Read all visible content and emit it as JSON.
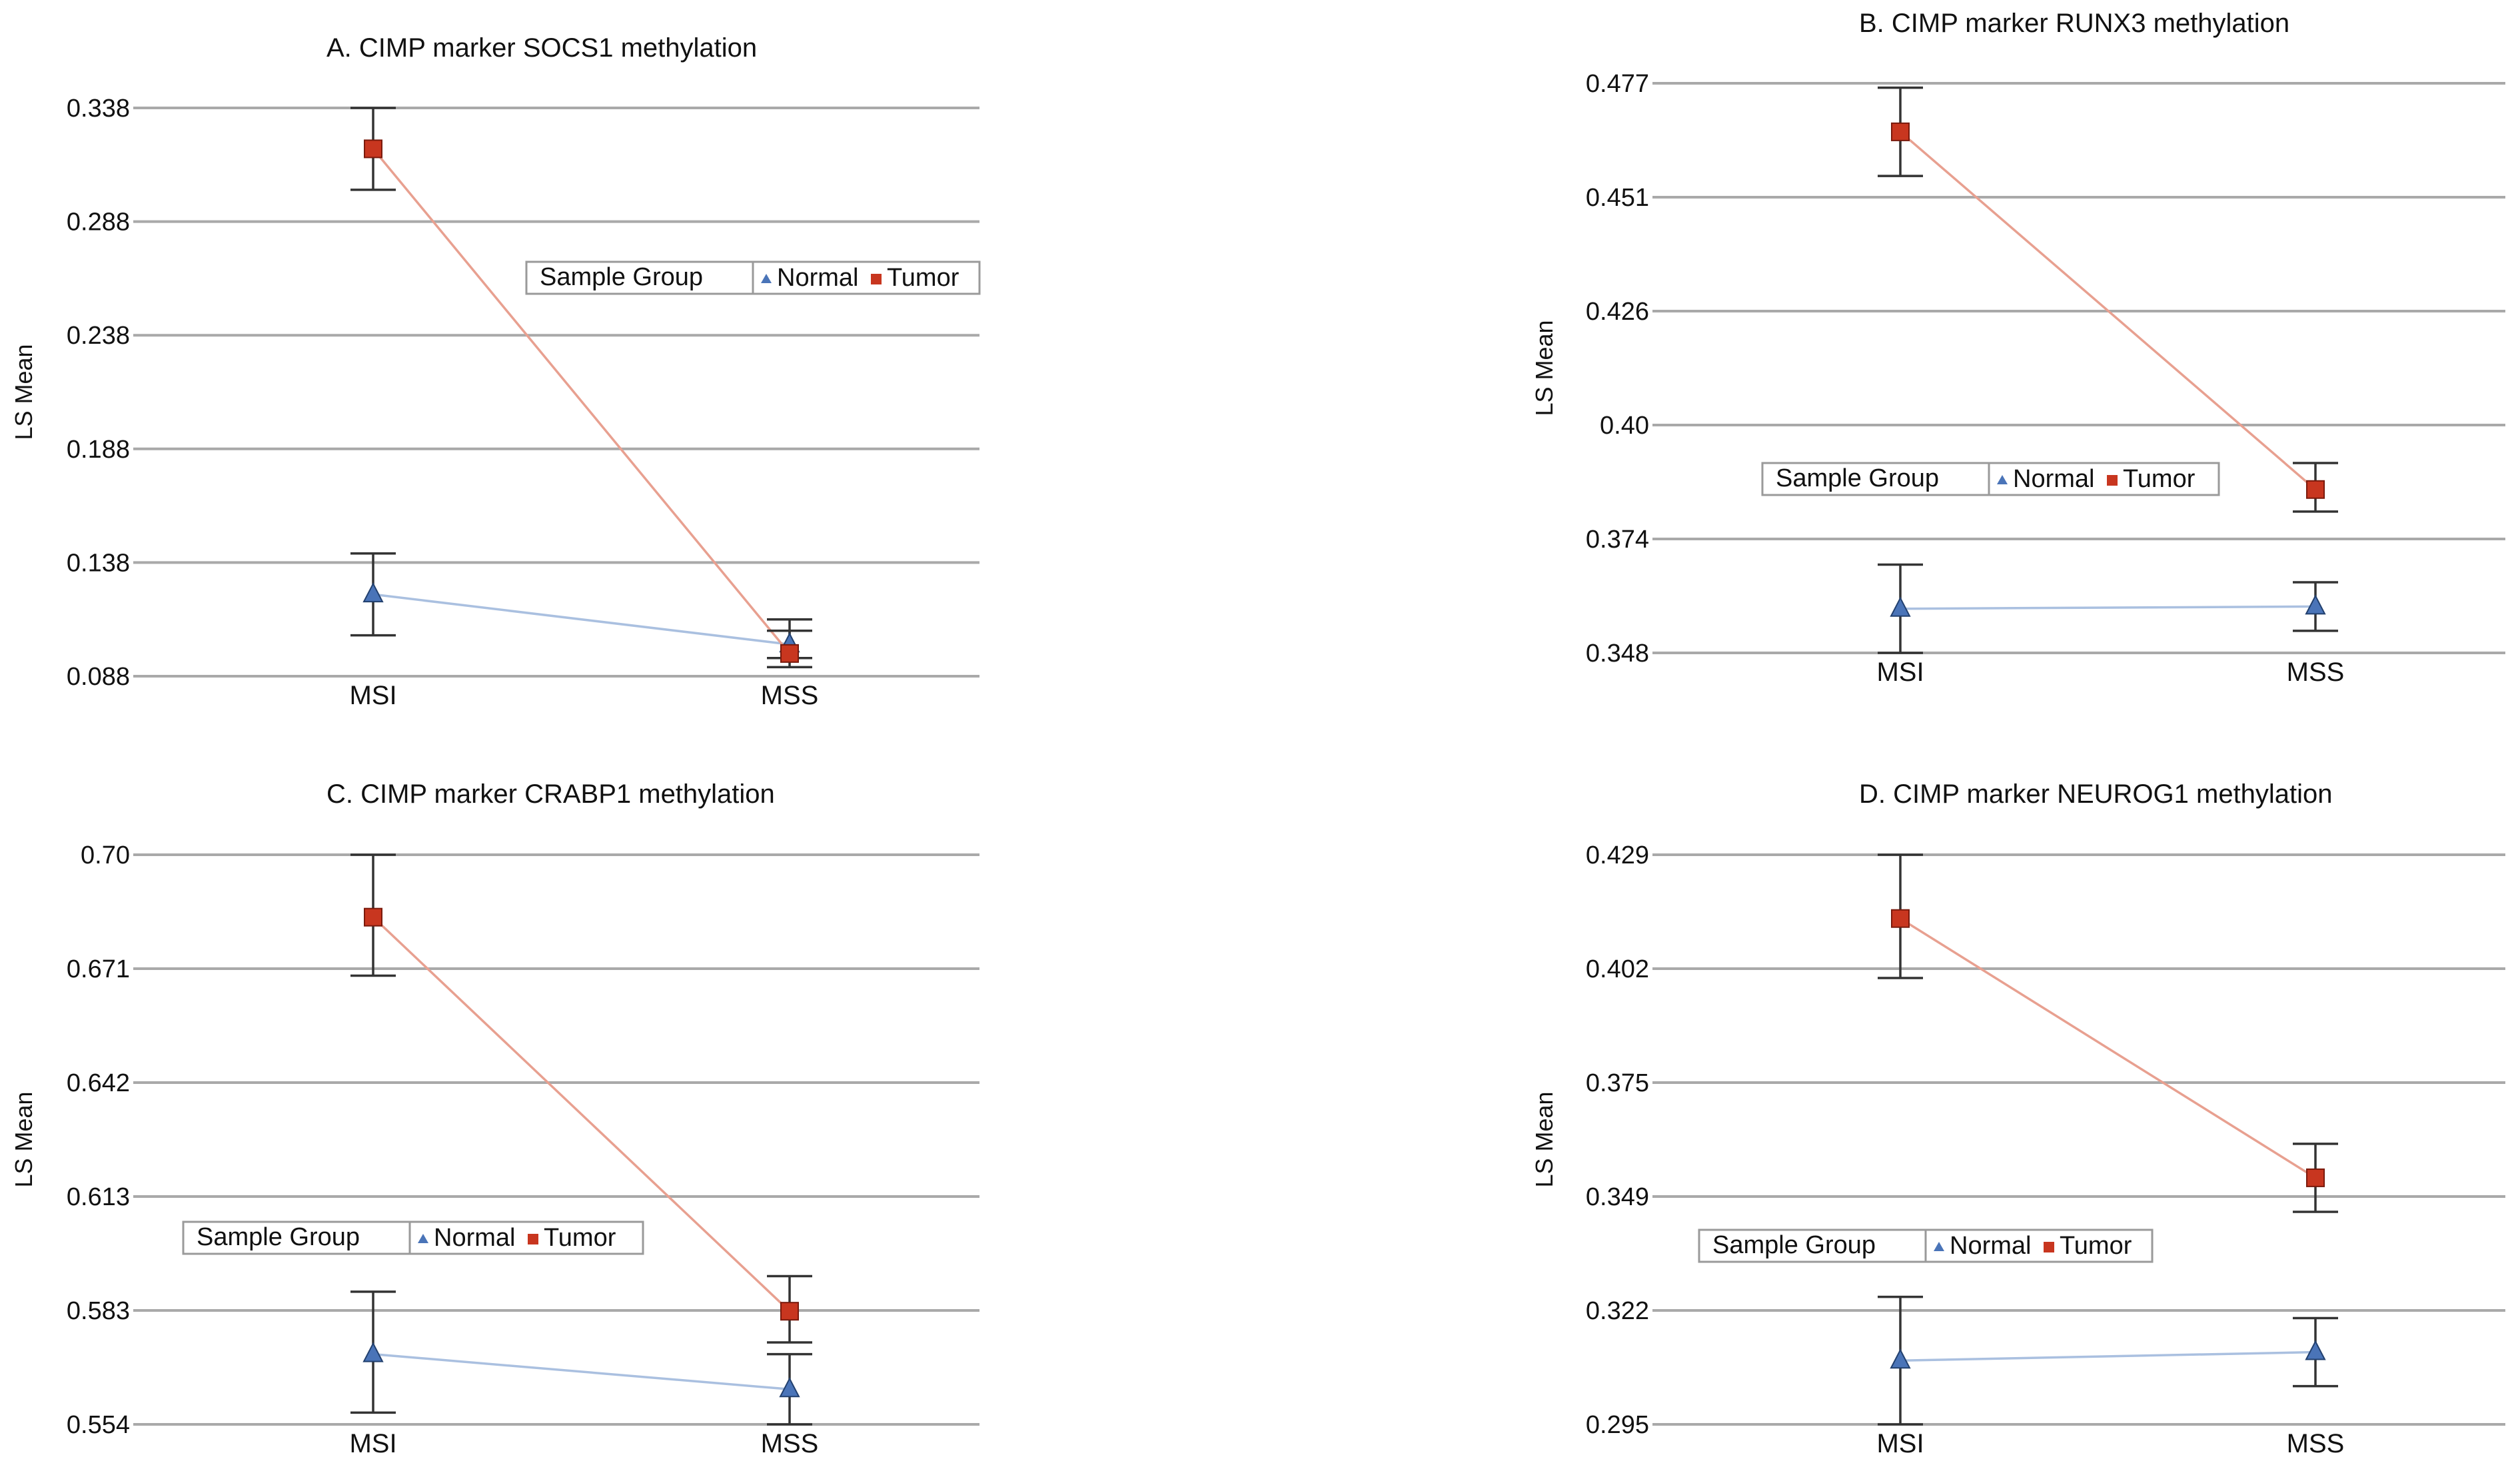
{
  "chart_data": [
    {
      "type": "line",
      "title": "A.    CIMP marker SOCS1 methylation",
      "ylabel": "LS Mean",
      "categories": [
        "MSI",
        "MSS"
      ],
      "yticks": [
        "0.338",
        "0.288",
        "0.238",
        "0.188",
        "0.138",
        "0.088"
      ],
      "ylim": [
        0.088,
        0.338
      ],
      "grid": true,
      "legend": {
        "title": "Sample Group",
        "entries": [
          "Normal",
          "Tumor"
        ],
        "placement": "center-right"
      },
      "series": [
        {
          "name": "Normal",
          "values": [
            0.124,
            0.102
          ],
          "error_low": [
            0.106,
            0.096
          ],
          "error_high": [
            0.142,
            0.108
          ],
          "color": "#4a74b8",
          "line_color": "#aac0e0",
          "marker": "triangle"
        },
        {
          "name": "Tumor",
          "values": [
            0.32,
            0.098
          ],
          "error_low": [
            0.302,
            0.092
          ],
          "error_high": [
            0.338,
            0.113
          ],
          "color": "#c8361f",
          "line_color": "#e8a090",
          "marker": "square"
        }
      ]
    },
    {
      "type": "line",
      "title": "B.    CIMP marker RUNX3 methylation",
      "ylabel": "LS Mean",
      "categories": [
        "MSI",
        "MSS"
      ],
      "yticks": [
        "0.477",
        "0.451",
        "0.426",
        "0.40",
        "0.374",
        "0.348"
      ],
      "ylim": [
        0.348,
        0.477
      ],
      "grid": true,
      "legend": {
        "title": "Sample Group",
        "entries": [
          "Normal",
          "Tumor"
        ],
        "placement": "center-left"
      },
      "series": [
        {
          "name": "Normal",
          "values": [
            0.358,
            0.3585
          ],
          "error_low": [
            0.348,
            0.353
          ],
          "error_high": [
            0.368,
            0.364
          ],
          "color": "#4a74b8",
          "line_color": "#aac0e0",
          "marker": "triangle"
        },
        {
          "name": "Tumor",
          "values": [
            0.466,
            0.385
          ],
          "error_low": [
            0.456,
            0.38
          ],
          "error_high": [
            0.476,
            0.391
          ],
          "color": "#c8361f",
          "line_color": "#e8a090",
          "marker": "square"
        }
      ]
    },
    {
      "type": "line",
      "title": "C.    CIMP marker CRABP1 methylation",
      "ylabel": "LS Mean",
      "categories": [
        "MSI",
        "MSS"
      ],
      "yticks": [
        "0.70",
        "0.671",
        "0.642",
        "0.613",
        "0.583",
        "0.554"
      ],
      "ylim": [
        0.554,
        0.7
      ],
      "grid": true,
      "legend": {
        "title": "Sample Group",
        "entries": [
          "Normal",
          "Tumor"
        ],
        "placement": "center-left"
      },
      "series": [
        {
          "name": "Normal",
          "values": [
            0.572,
            0.563
          ],
          "error_low": [
            0.557,
            0.554
          ],
          "error_high": [
            0.588,
            0.572
          ],
          "color": "#4a74b8",
          "line_color": "#aac0e0",
          "marker": "triangle"
        },
        {
          "name": "Tumor",
          "values": [
            0.684,
            0.583
          ],
          "error_low": [
            0.669,
            0.575
          ],
          "error_high": [
            0.7,
            0.592
          ],
          "color": "#c8361f",
          "line_color": "#e8a090",
          "marker": "square"
        }
      ]
    },
    {
      "type": "line",
      "title": "D.    CIMP marker NEUROG1 methylation",
      "ylabel": "LS Mean",
      "categories": [
        "MSI",
        "MSS"
      ],
      "yticks": [
        "0.429",
        "0.402",
        "0.375",
        "0.349",
        "0.322",
        "0.295"
      ],
      "ylim": [
        0.295,
        0.429
      ],
      "grid": true,
      "legend": {
        "title": "Sample Group",
        "entries": [
          "Normal",
          "Tumor"
        ],
        "placement": "center-left"
      },
      "series": [
        {
          "name": "Normal",
          "values": [
            0.31,
            0.312
          ],
          "error_low": [
            0.295,
            0.304
          ],
          "error_high": [
            0.325,
            0.32
          ],
          "color": "#4a74b8",
          "line_color": "#aac0e0",
          "marker": "triangle"
        },
        {
          "name": "Tumor",
          "values": [
            0.414,
            0.353
          ],
          "error_low": [
            0.4,
            0.345
          ],
          "error_high": [
            0.429,
            0.361
          ],
          "color": "#c8361f",
          "line_color": "#e8a090",
          "marker": "square"
        }
      ]
    }
  ]
}
